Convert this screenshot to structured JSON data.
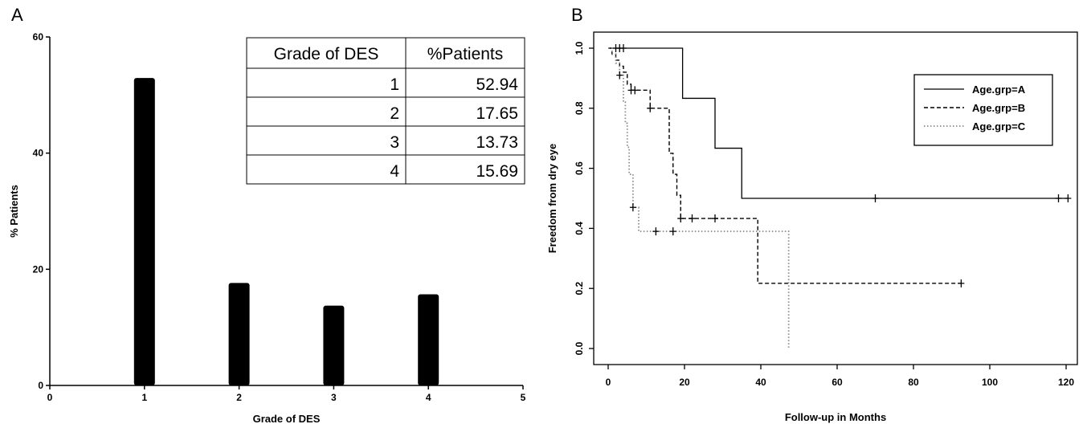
{
  "panels": {
    "a": {
      "letter": "A"
    },
    "b": {
      "letter": "B"
    }
  },
  "chart_data": [
    {
      "type": "bar",
      "panel": "A",
      "xlabel": "Grade of DES",
      "ylabel": "% Patients",
      "xlim": [
        0,
        5
      ],
      "ylim": [
        0,
        60
      ],
      "xticks": [
        0,
        1,
        2,
        3,
        4,
        5
      ],
      "yticks": [
        0,
        20,
        40,
        60
      ],
      "categories": [
        1,
        2,
        3,
        4
      ],
      "values": [
        52.94,
        17.65,
        13.73,
        15.69
      ],
      "bar_color": "#000000",
      "grid": false,
      "table": {
        "headers": [
          "Grade of DES",
          "%Patients"
        ],
        "rows": [
          [
            "1",
            "52.94"
          ],
          [
            "2",
            "17.65"
          ],
          [
            "3",
            "13.73"
          ],
          [
            "4",
            "15.69"
          ]
        ],
        "placement": "top-right"
      }
    },
    {
      "type": "line",
      "subtype": "kaplan-meier",
      "panel": "B",
      "xlabel": "Follow-up in Months",
      "ylabel": "Freedom from dry eye",
      "xlim": [
        0,
        120
      ],
      "ylim": [
        0,
        1
      ],
      "xticks": [
        0,
        20,
        40,
        60,
        80,
        100,
        120
      ],
      "yticks": [
        "0.0",
        "0.2",
        "0.4",
        "0.6",
        "0.8",
        "1.0"
      ],
      "grid": false,
      "legend": "top-right",
      "series": [
        {
          "name": "Age.grp=A",
          "style": "solid",
          "steps": [
            [
              0,
              1.0
            ],
            [
              19.5,
              0.833
            ],
            [
              28,
              0.667
            ],
            [
              35,
              0.5
            ],
            [
              120.5,
              0.5
            ]
          ],
          "censored": [
            [
              2,
              1.0
            ],
            [
              3,
              1.0
            ],
            [
              4,
              1.0
            ],
            [
              70,
              0.5
            ],
            [
              118,
              0.5
            ],
            [
              120.5,
              0.5
            ]
          ]
        },
        {
          "name": "Age.grp=B",
          "style": "dashed",
          "steps": [
            [
              0,
              1.0
            ],
            [
              1,
              0.98
            ],
            [
              2,
              0.96
            ],
            [
              3,
              0.94
            ],
            [
              4,
              0.92
            ],
            [
              5,
              0.88
            ],
            [
              6,
              0.86
            ],
            [
              10,
              0.86
            ],
            [
              11,
              0.8
            ],
            [
              15,
              0.8
            ],
            [
              16,
              0.65
            ],
            [
              17,
              0.58
            ],
            [
              18,
              0.51
            ],
            [
              19,
              0.433
            ],
            [
              39,
              0.433
            ],
            [
              39.2,
              0.217
            ],
            [
              92.5,
              0.217
            ]
          ],
          "censored": [
            [
              6,
              0.86
            ],
            [
              7,
              0.86
            ],
            [
              11,
              0.8
            ],
            [
              19,
              0.433
            ],
            [
              22,
              0.433
            ],
            [
              28,
              0.433
            ],
            [
              92.5,
              0.217
            ]
          ]
        },
        {
          "name": "Age.grp=C",
          "style": "dotted",
          "steps": [
            [
              0,
              1.0
            ],
            [
              1,
              0.98
            ],
            [
              2,
              0.95
            ],
            [
              3,
              0.91
            ],
            [
              4,
              0.82
            ],
            [
              4.5,
              0.75
            ],
            [
              5,
              0.67
            ],
            [
              5.5,
              0.58
            ],
            [
              6.5,
              0.47
            ],
            [
              8,
              0.39
            ],
            [
              47.3,
              0.39
            ],
            [
              47.3,
              0.0
            ]
          ],
          "censored": [
            [
              3,
              0.91
            ],
            [
              6.5,
              0.47
            ],
            [
              12.5,
              0.39
            ],
            [
              17,
              0.39
            ]
          ]
        }
      ]
    }
  ]
}
